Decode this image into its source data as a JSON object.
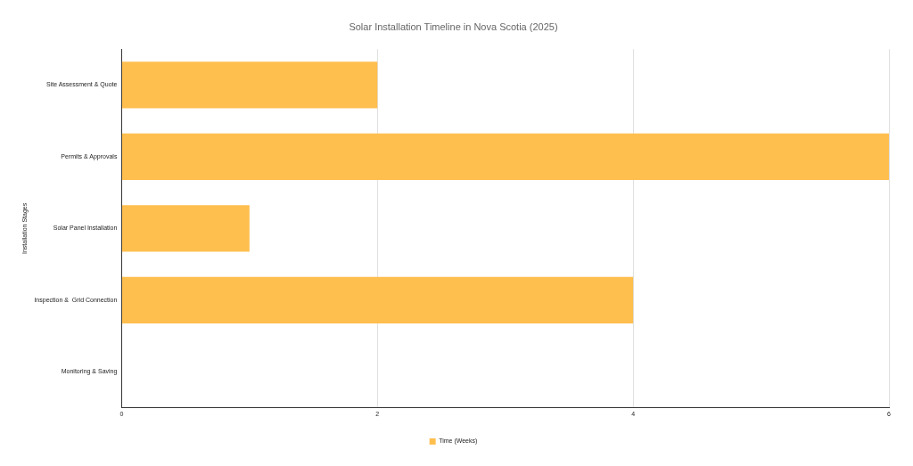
{
  "chart_data": {
    "type": "bar",
    "orientation": "horizontal",
    "title": "Solar Installation Timeline in Nova Scotia (2025)",
    "ylabel": "Installation Stages",
    "categories": [
      "Site Assessment & Quote",
      "Permits & Approvals",
      "Solar Panel Installation",
      "Inspection &  Grid Connection",
      "Monitoring & Saving"
    ],
    "series": [
      {
        "name": "Time (Weeks)",
        "color": "#ffbf4f",
        "values": [
          2,
          6,
          1,
          4,
          0
        ]
      }
    ],
    "xlim": [
      0,
      6
    ],
    "xticks": [
      0,
      2,
      4,
      6
    ],
    "grid": "x",
    "legend": "bottom"
  }
}
